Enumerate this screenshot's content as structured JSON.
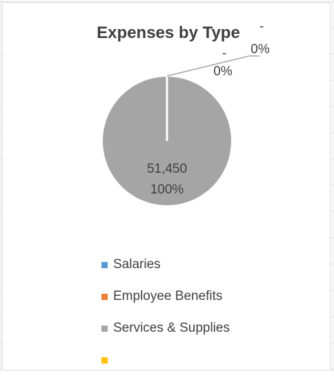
{
  "chart_data": {
    "type": "pie",
    "title": "Expenses by Type",
    "categories": [
      "Salaries",
      "Employee Benefits",
      "Services & Supplies",
      ""
    ],
    "values": [
      0,
      0,
      51450,
      0
    ],
    "value_labels": [
      "-",
      "-",
      "51,450",
      ""
    ],
    "percent_labels": [
      "0%",
      "0%",
      "100%",
      ""
    ],
    "colors": [
      "#5b9bd5",
      "#ed7d31",
      "#a5a5a5",
      "#ffc000"
    ],
    "legend_position": "bottom"
  }
}
